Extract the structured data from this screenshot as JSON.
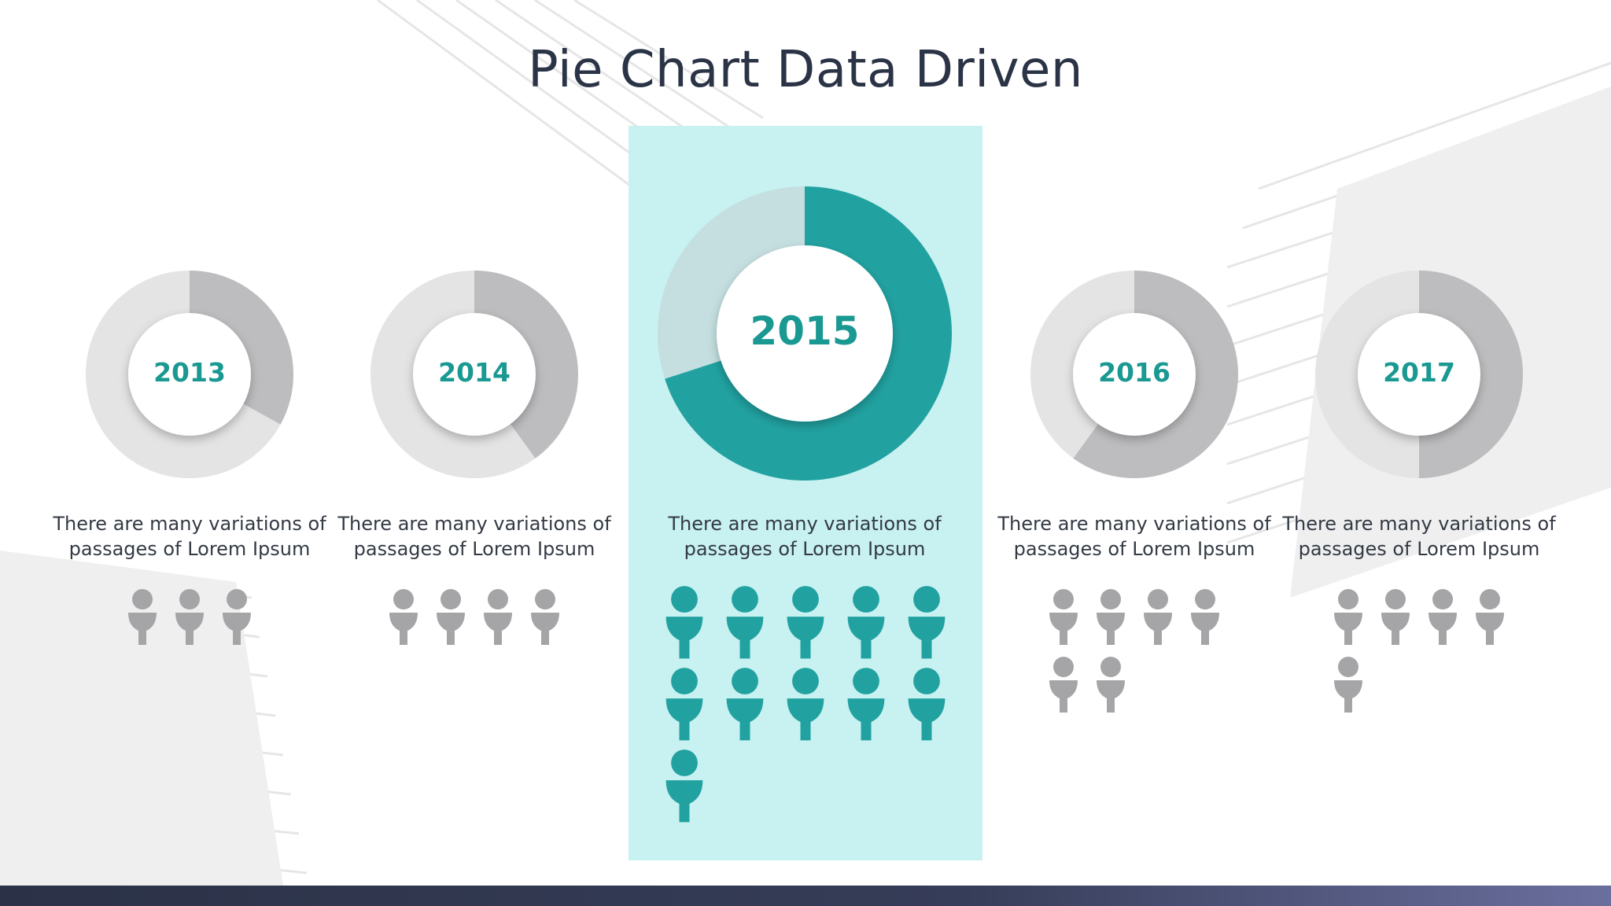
{
  "title": "Pie Chart Data Driven",
  "colors": {
    "accent": "#1a9892",
    "accent_light": "#c8f1f1",
    "gray_dark": "#bdbdbf",
    "gray_light": "#e4e4e5",
    "person_gray": "#a5a5a7",
    "person_teal": "#21a2a1",
    "text_dark": "#2b3446"
  },
  "chart_data": {
    "type": "pie",
    "style": "donut",
    "title": "Pie Chart Data Driven",
    "categories": [
      "2013",
      "2014",
      "2015",
      "2016",
      "2017"
    ],
    "highlighted": "2015",
    "series": [
      {
        "values": [
          33,
          40,
          70,
          60,
          50
        ]
      }
    ],
    "unit": "percent",
    "people_counts": [
      3,
      4,
      11,
      6,
      5
    ],
    "descriptions": [
      [
        "There are many variations of",
        "passages of Lorem Ipsum"
      ],
      [
        "There are many variations of",
        "passages of Lorem Ipsum"
      ],
      [
        "There are many variations of",
        "passages of Lorem Ipsum"
      ],
      [
        "There are many variations of",
        "passages of Lorem Ipsum"
      ],
      [
        "There are many variations of",
        "passages of Lorem Ipsum"
      ]
    ]
  }
}
